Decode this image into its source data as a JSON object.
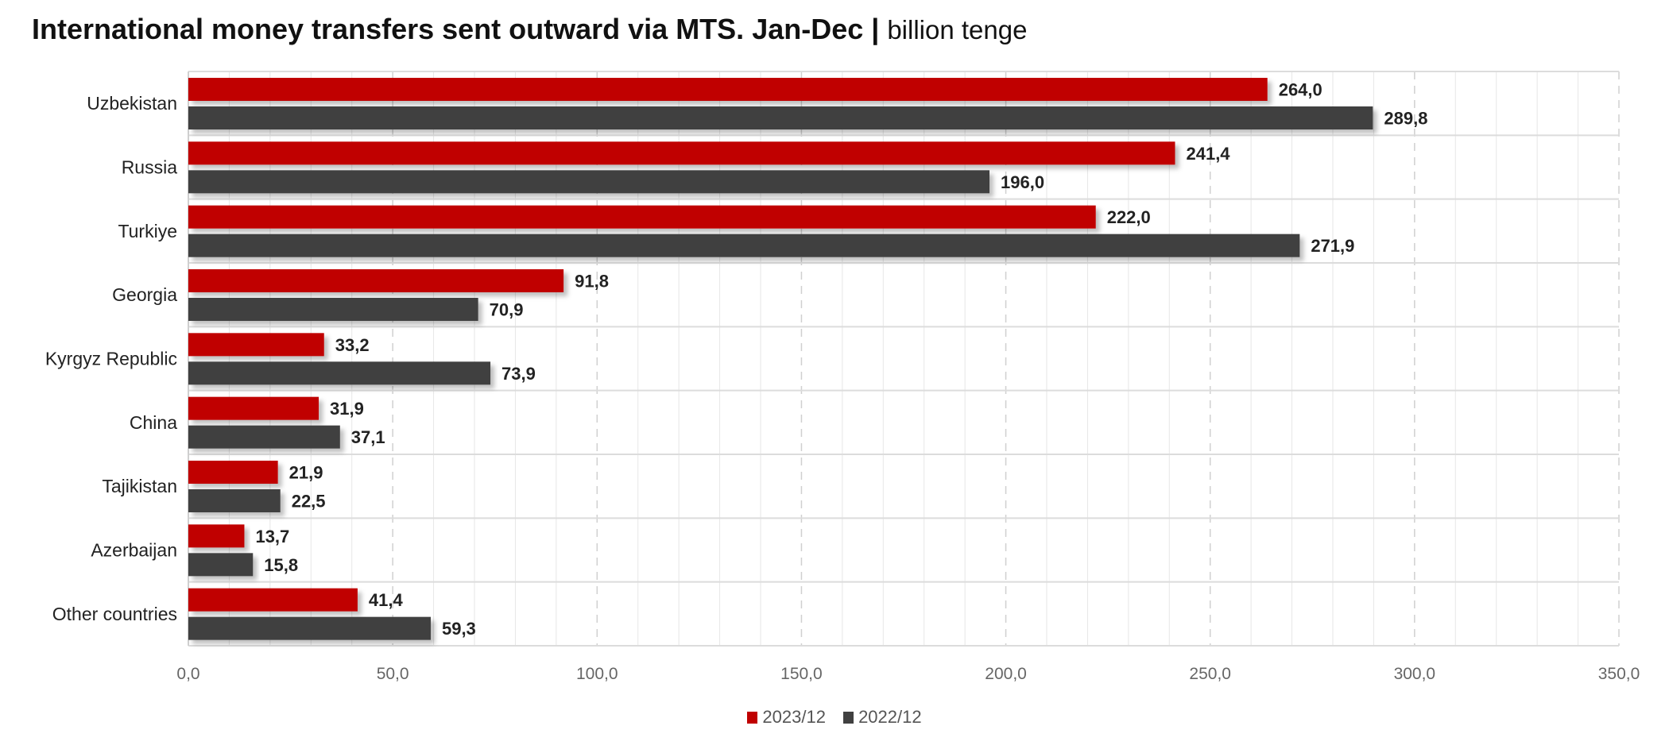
{
  "title": "International money transfers sent outward via MTS. Jan-Dec",
  "unit": "billion tenge",
  "chart_data": {
    "type": "bar",
    "orientation": "horizontal",
    "categories": [
      "Uzbekistan",
      "Russia",
      "Turkiye",
      "Georgia",
      "Kyrgyz Republic",
      "China",
      "Tajikistan",
      "Azerbaijan",
      "Other countries"
    ],
    "series": [
      {
        "name": "2023/12",
        "color": "#c00000",
        "values": [
          264.0,
          241.4,
          222.0,
          91.8,
          33.2,
          31.9,
          21.9,
          13.7,
          41.4
        ],
        "labels": [
          "264,0",
          "241,4",
          "222,0",
          "91,8",
          "33,2",
          "31,9",
          "21,9",
          "13,7",
          "41,4"
        ]
      },
      {
        "name": "2022/12",
        "color": "#404040",
        "values": [
          289.8,
          196.0,
          271.9,
          70.9,
          73.9,
          37.1,
          22.5,
          15.8,
          59.3
        ],
        "labels": [
          "289,8",
          "196,0",
          "271,9",
          "70,9",
          "73,9",
          "37,1",
          "22,5",
          "15,8",
          "59,3"
        ]
      }
    ],
    "xlim": [
      0,
      350
    ],
    "xticks": [
      0,
      50,
      100,
      150,
      200,
      250,
      300,
      350
    ],
    "xtick_labels": [
      "0,0",
      "50,0",
      "100,0",
      "150,0",
      "200,0",
      "250,0",
      "300,0",
      "350,0"
    ],
    "grid": true,
    "legend_position": "bottom"
  }
}
